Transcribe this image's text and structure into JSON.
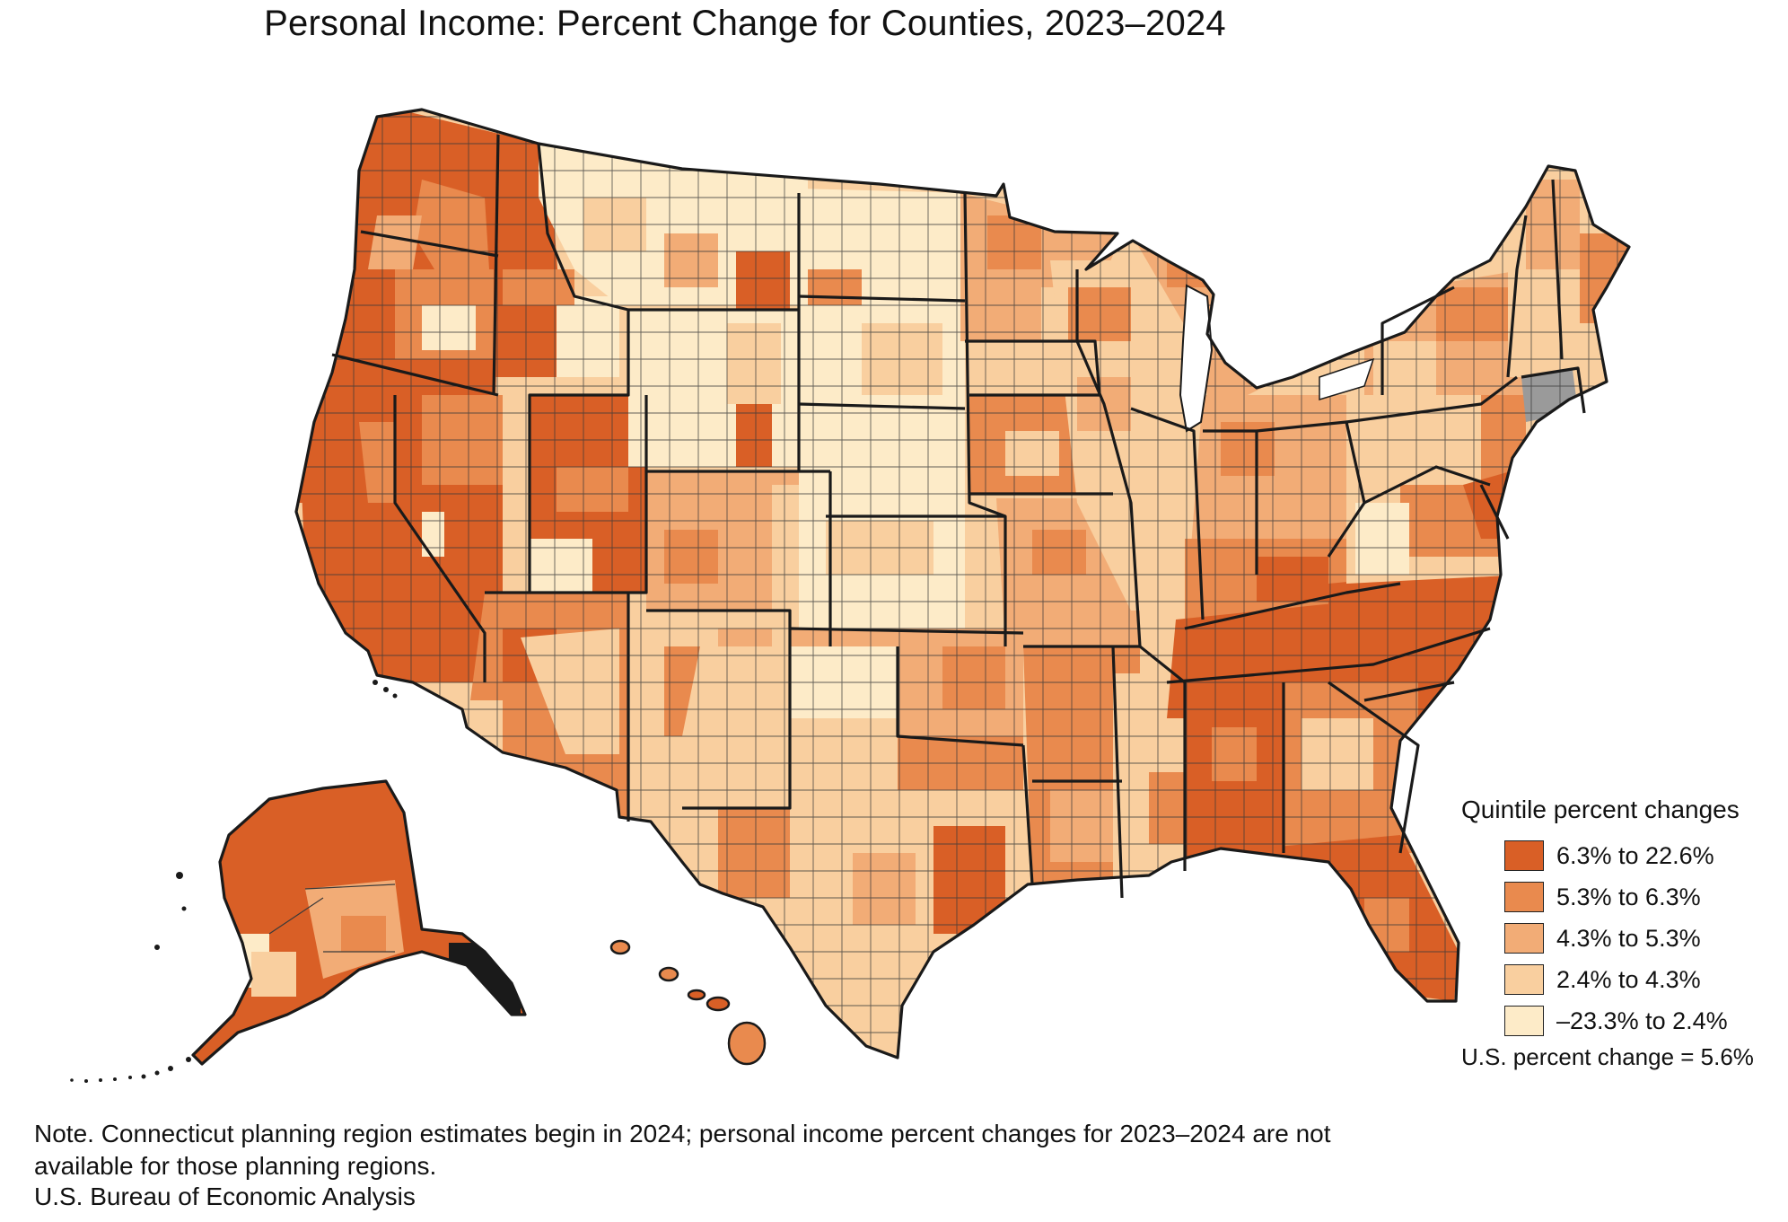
{
  "title": "Personal Income: Percent Change for Counties, 2023–2024",
  "legend": {
    "title": "Quintile percent changes",
    "items": [
      {
        "label": "6.3% to 22.6%",
        "color": "#d95f26"
      },
      {
        "label": "5.3% to 6.3%",
        "color": "#e98a4e"
      },
      {
        "label": "4.3% to 5.3%",
        "color": "#f2ac76"
      },
      {
        "label": "2.4% to 4.3%",
        "color": "#f9cf9f"
      },
      {
        "label": "–23.3% to 2.4%",
        "color": "#fdebc8"
      }
    ],
    "us_change": "U.S. percent change = 5.6%"
  },
  "colors": {
    "not_available": "#9a9a9a",
    "boundary": "#1a1a1a"
  },
  "note": "Note. Connecticut planning region estimates begin in 2024; personal income percent changes for 2023–2024 are not available for those planning regions.",
  "source": "U.S. Bureau of Economic Analysis"
}
